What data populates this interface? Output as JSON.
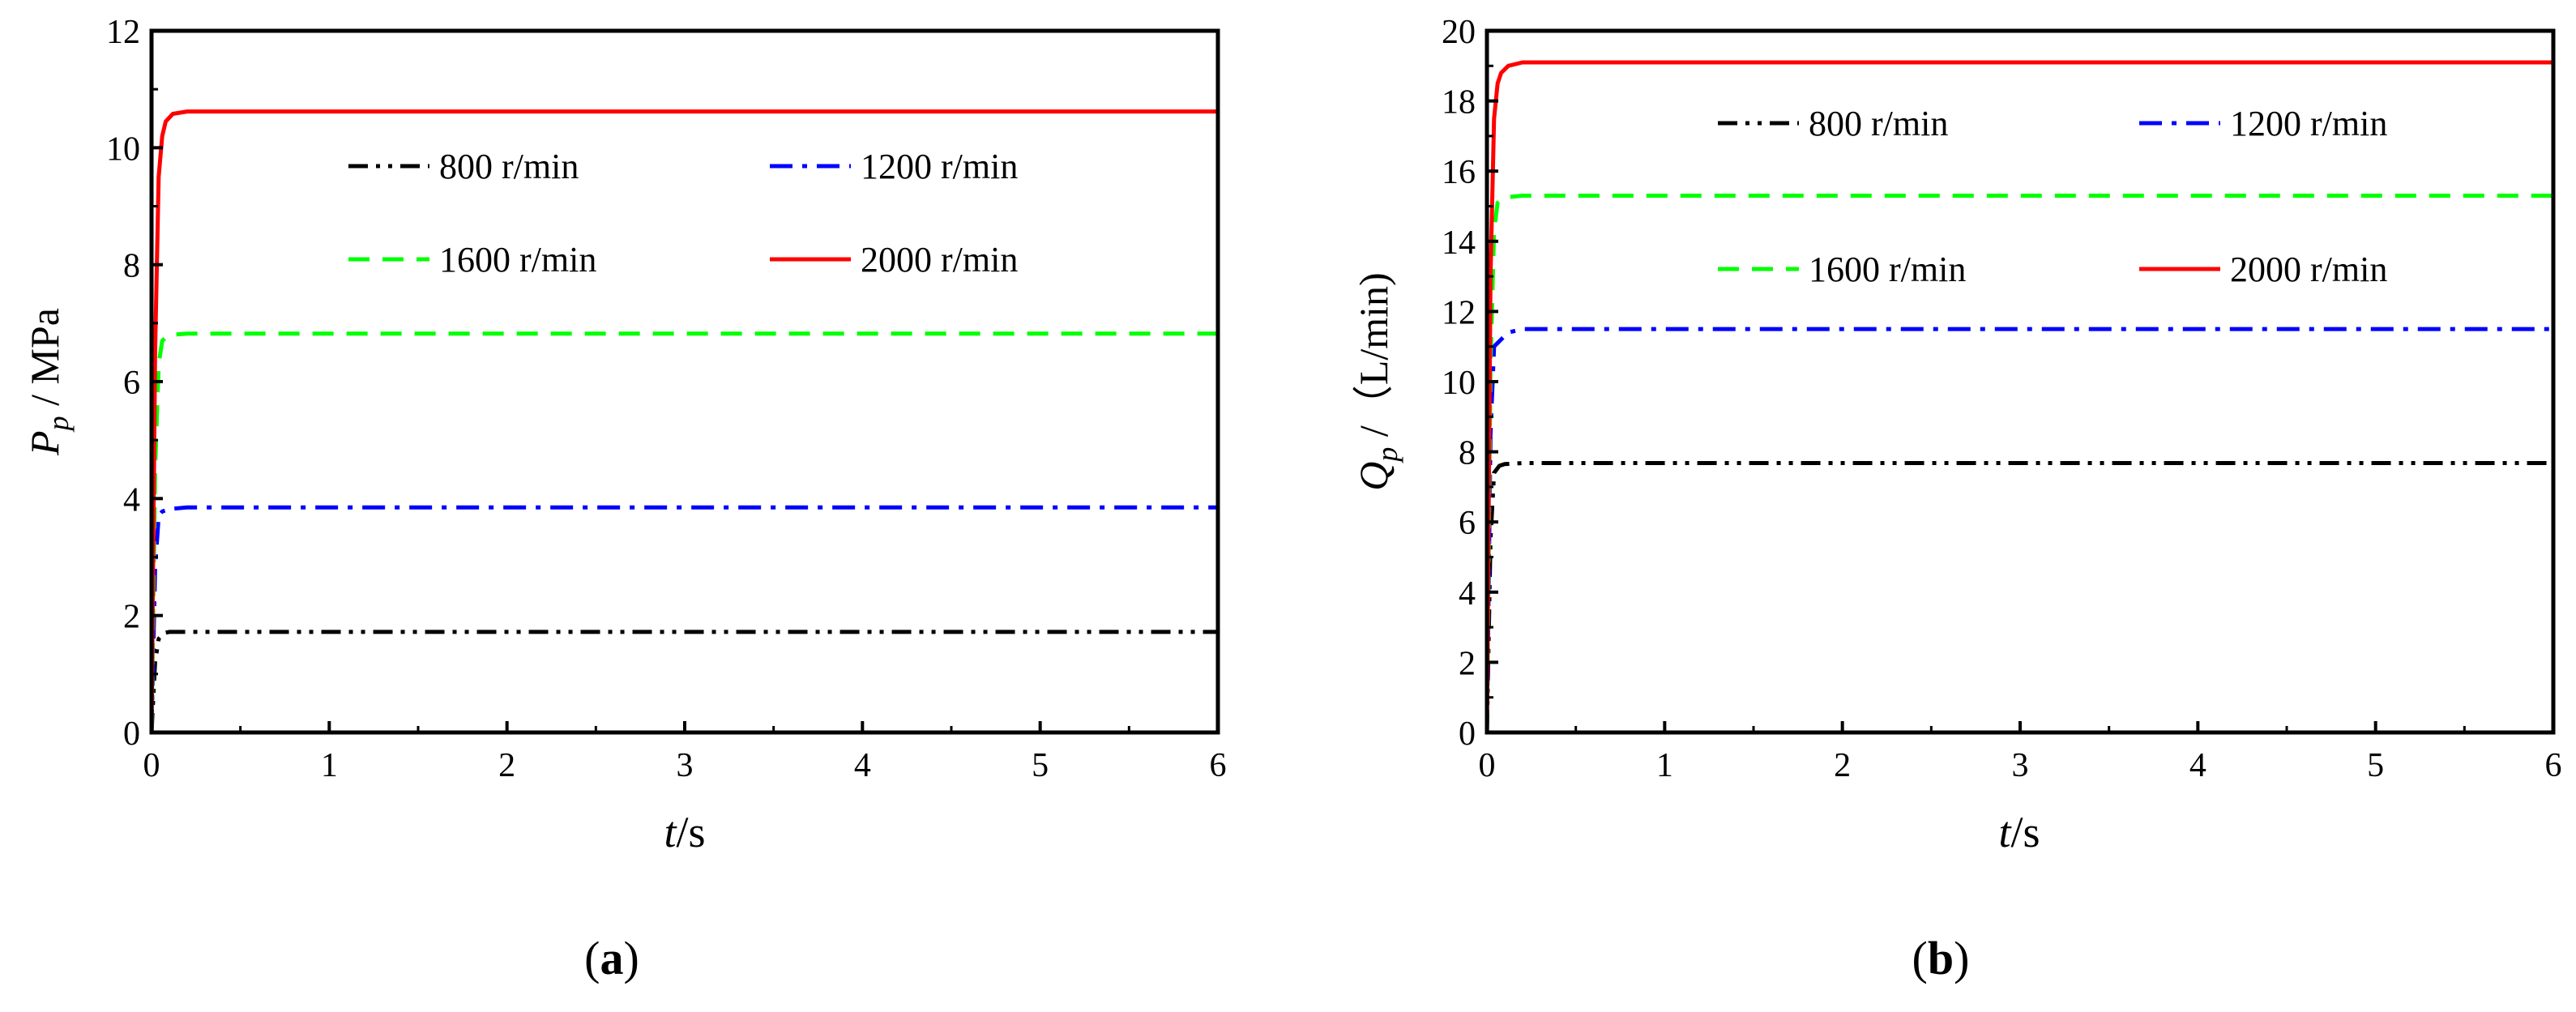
{
  "colors": {
    "axis": "#000000",
    "s800": "#000000",
    "s1200": "#0000ff",
    "s1600": "#00ff00",
    "s2000": "#ff0000"
  },
  "chart_data": [
    {
      "type": "line",
      "panel_label": "a",
      "xlabel_italic": "t",
      "xlabel_unit": "/s",
      "ylabel_symbol": "P",
      "ylabel_sub": "p",
      "ylabel_unit": " / MPa",
      "xlim": [
        0,
        6
      ],
      "ylim": [
        0,
        12
      ],
      "xticks": [
        0,
        1,
        2,
        3,
        4,
        5,
        6
      ],
      "yticks": [
        0,
        2,
        4,
        6,
        8,
        10,
        12
      ],
      "legend_position": "upper-center",
      "series": [
        {
          "name": "800 r/min",
          "color": "#000000",
          "dash": "dashdotdot",
          "x": [
            0,
            0.02,
            0.04,
            0.07,
            0.1,
            0.2,
            6
          ],
          "y": [
            0,
            1.2,
            1.6,
            1.7,
            1.72,
            1.72,
            1.72
          ]
        },
        {
          "name": "1200 r/min",
          "color": "#0000ff",
          "dash": "dashdot",
          "x": [
            0,
            0.02,
            0.04,
            0.06,
            0.1,
            0.2,
            6
          ],
          "y": [
            0,
            2.8,
            3.7,
            3.78,
            3.82,
            3.85,
            3.85
          ]
        },
        {
          "name": "1600 r/min",
          "color": "#00ff00",
          "dash": "dash",
          "x": [
            0,
            0.02,
            0.04,
            0.06,
            0.1,
            0.2,
            6
          ],
          "y": [
            0,
            4.5,
            6.3,
            6.7,
            6.8,
            6.82,
            6.82
          ]
        },
        {
          "name": "2000 r/min",
          "color": "#ff0000",
          "dash": "solid",
          "x": [
            0,
            0.02,
            0.04,
            0.06,
            0.08,
            0.12,
            0.2,
            0.3,
            6
          ],
          "y": [
            0,
            6.5,
            9.5,
            10.2,
            10.45,
            10.58,
            10.62,
            10.62,
            10.62
          ]
        }
      ]
    },
    {
      "type": "line",
      "panel_label": "b",
      "xlabel_italic": "t",
      "xlabel_unit": "/s",
      "ylabel_symbol": "Q",
      "ylabel_sub": "p",
      "ylabel_unit": " /（L/min)",
      "xlim": [
        0,
        6
      ],
      "ylim": [
        0,
        20
      ],
      "xticks": [
        0,
        1,
        2,
        3,
        4,
        5,
        6
      ],
      "yticks": [
        0,
        2,
        4,
        6,
        8,
        10,
        12,
        14,
        16,
        18,
        20
      ],
      "legend_position": "upper-center",
      "series": [
        {
          "name": "800 r/min",
          "color": "#000000",
          "dash": "dashdotdot",
          "x": [
            0,
            0.02,
            0.04,
            0.07,
            0.1,
            0.2,
            6
          ],
          "y": [
            0,
            5.5,
            7.4,
            7.6,
            7.65,
            7.68,
            7.68
          ]
        },
        {
          "name": "1200 r/min",
          "color": "#0000ff",
          "dash": "dashdot",
          "x": [
            0,
            0.02,
            0.04,
            0.08,
            0.12,
            0.2,
            6
          ],
          "y": [
            0,
            8.5,
            11.0,
            11.2,
            11.4,
            11.5,
            11.5
          ]
        },
        {
          "name": "1600 r/min",
          "color": "#00ff00",
          "dash": "dash",
          "x": [
            0,
            0.02,
            0.04,
            0.06,
            0.1,
            0.2,
            6
          ],
          "y": [
            0,
            10.5,
            14.3,
            15.1,
            15.25,
            15.3,
            15.3
          ]
        },
        {
          "name": "2000 r/min",
          "color": "#ff0000",
          "dash": "solid",
          "x": [
            0,
            0.02,
            0.04,
            0.06,
            0.08,
            0.12,
            0.2,
            0.3,
            6
          ],
          "y": [
            0,
            13.0,
            17.5,
            18.5,
            18.8,
            19.0,
            19.1,
            19.1,
            19.1
          ]
        }
      ]
    }
  ]
}
